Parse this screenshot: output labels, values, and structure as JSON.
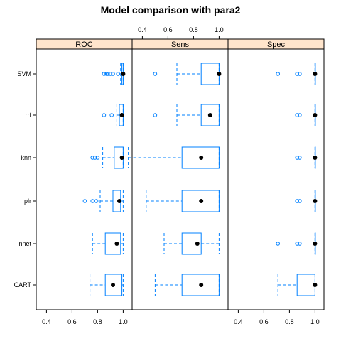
{
  "chart_data": {
    "type": "boxplot",
    "title": "Model comparison with para2",
    "xlabel": "",
    "ylabel": "",
    "xlim": [
      0.32,
      1.07
    ],
    "x_ticks": [
      0.4,
      0.6,
      0.8,
      1.0
    ],
    "x_tick_labels": [
      "0.4",
      "0.6",
      "0.8",
      "1.0"
    ],
    "categories": [
      "CART",
      "nnet",
      "plr",
      "knn",
      "rrf",
      "SVM"
    ],
    "panels": [
      {
        "name": "ROC",
        "boxes": [
          {
            "category": "CART",
            "min": 0.74,
            "q1": 0.86,
            "median": 0.92,
            "q3": 0.99,
            "max": 1.0,
            "outliers": []
          },
          {
            "category": "nnet",
            "min": 0.76,
            "q1": 0.86,
            "median": 0.95,
            "q3": 0.98,
            "max": 1.0,
            "outliers": []
          },
          {
            "category": "plr",
            "min": 0.82,
            "q1": 0.92,
            "median": 0.97,
            "q3": 0.98,
            "max": 1.0,
            "outliers": [
              0.7,
              0.76,
              0.79
            ]
          },
          {
            "category": "knn",
            "min": 0.84,
            "q1": 0.93,
            "median": 0.99,
            "q3": 1.0,
            "max": 1.0,
            "outliers": [
              0.76,
              0.78,
              0.8
            ]
          },
          {
            "category": "rrf",
            "min": 0.95,
            "q1": 0.97,
            "median": 0.99,
            "q3": 1.0,
            "max": 1.0,
            "outliers": [
              0.85,
              0.91
            ]
          },
          {
            "category": "SVM",
            "min": 0.98,
            "q1": 0.99,
            "median": 1.0,
            "q3": 1.0,
            "max": 1.0,
            "outliers": [
              0.85,
              0.87,
              0.88,
              0.9,
              0.92,
              0.96
            ]
          }
        ]
      },
      {
        "name": "Sens",
        "boxes": [
          {
            "category": "CART",
            "min": 0.5,
            "q1": 0.71,
            "median": 0.86,
            "q3": 1.0,
            "max": 1.0,
            "outliers": []
          },
          {
            "category": "nnet",
            "min": 0.57,
            "q1": 0.71,
            "median": 0.83,
            "q3": 0.86,
            "max": 1.0,
            "outliers": []
          },
          {
            "category": "plr",
            "min": 0.43,
            "q1": 0.71,
            "median": 0.86,
            "q3": 1.0,
            "max": 1.0,
            "outliers": []
          },
          {
            "category": "knn",
            "min": 0.29,
            "q1": 0.71,
            "median": 0.86,
            "q3": 1.0,
            "max": 1.0,
            "outliers": []
          },
          {
            "category": "rrf",
            "min": 0.67,
            "q1": 0.86,
            "median": 0.93,
            "q3": 1.0,
            "max": 1.0,
            "outliers": [
              0.5
            ]
          },
          {
            "category": "SVM",
            "min": 0.67,
            "q1": 0.86,
            "median": 1.0,
            "q3": 1.0,
            "max": 1.0,
            "outliers": [
              0.5
            ]
          }
        ]
      },
      {
        "name": "Spec",
        "boxes": [
          {
            "category": "CART",
            "min": 0.71,
            "q1": 0.86,
            "median": 1.0,
            "q3": 1.0,
            "max": 1.0,
            "outliers": []
          },
          {
            "category": "nnet",
            "min": 1.0,
            "q1": 1.0,
            "median": 1.0,
            "q3": 1.0,
            "max": 1.0,
            "outliers": [
              0.71,
              0.86,
              0.88
            ]
          },
          {
            "category": "plr",
            "min": 1.0,
            "q1": 1.0,
            "median": 1.0,
            "q3": 1.0,
            "max": 1.0,
            "outliers": [
              0.86,
              0.88
            ]
          },
          {
            "category": "knn",
            "min": 1.0,
            "q1": 1.0,
            "median": 1.0,
            "q3": 1.0,
            "max": 1.0,
            "outliers": [
              0.86,
              0.88
            ]
          },
          {
            "category": "rrf",
            "min": 1.0,
            "q1": 1.0,
            "median": 1.0,
            "q3": 1.0,
            "max": 1.0,
            "outliers": [
              0.86,
              0.88
            ]
          },
          {
            "category": "SVM",
            "min": 1.0,
            "q1": 1.0,
            "median": 1.0,
            "q3": 1.0,
            "max": 1.0,
            "outliers": [
              0.71,
              0.86,
              0.88
            ]
          }
        ]
      }
    ],
    "grid": false,
    "legend": "none",
    "colors": {
      "box": "#0080ff",
      "median_dot": "#000000",
      "strip_bg": "#ffe5cc",
      "axis": "#000000"
    }
  }
}
